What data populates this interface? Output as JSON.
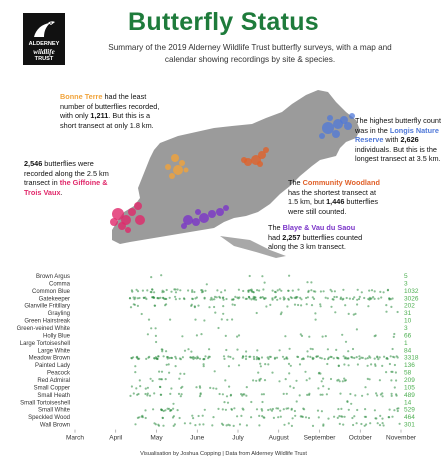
{
  "header": {
    "title": "Butterfly Status",
    "subtitle": "Summary of the 2019 Alderney Wildlife Trust butterfly surveys, with a map and calendar showing recordings by site & species.",
    "logo": {
      "line1": "ALDERNEY",
      "line2": "wildlife",
      "line3": "TRUST"
    }
  },
  "colors": {
    "title": "#1e7b3b",
    "map": "#9b9b9b",
    "bonne_terre": "#f1a33a",
    "longis": "#4f78d8",
    "community": "#e0612a",
    "gifoine": "#e0286a",
    "blaye": "#7a34c8",
    "dots": "#2a8a3e",
    "count": "#4caf50"
  },
  "annotations": {
    "bonne_terre": {
      "name": "Bonne Terre",
      "t1": " had the least number of butterflies recorded, with only ",
      "count": "1,211",
      "t2": ". But this is a short transect at only 1.8 km."
    },
    "longis": {
      "t0": "The highest butterfly count was in the ",
      "name": "Longis Nature Reserve",
      "t1": " with ",
      "count": "2,626",
      "t2": " individuals. But this is the longest transect at 3.5 km."
    },
    "gifoine": {
      "count": "2,546",
      "t1": " butterflies were recorded along the 2.5 km transect in ",
      "name": "the Giffoine & Trois Vaux",
      "t2": "."
    },
    "community": {
      "t0": "The ",
      "name": "Community Woodland",
      "t1": " has the shortest transect at 1.5 km, but ",
      "count": "1,446",
      "t2": " butterflies were still counted."
    },
    "blaye": {
      "t0": "The ",
      "name": "Blaye & Vau du Saou",
      "t1": " had ",
      "count": "2,257",
      "t2": " butterflies counted along the 3 km transect."
    }
  },
  "chart_data": {
    "type": "scatter",
    "xlabel": "",
    "ylabel": "",
    "months": [
      "March",
      "April",
      "May",
      "June",
      "July",
      "August",
      "September",
      "October",
      "November"
    ],
    "species": [
      {
        "name": "Brown Argus",
        "count": "5"
      },
      {
        "name": "Comma",
        "count": "3"
      },
      {
        "name": "Common Blue",
        "count": "1032"
      },
      {
        "name": "Gatekeeper",
        "count": "3026"
      },
      {
        "name": "Glanville Fritillary",
        "count": "202"
      },
      {
        "name": "Grayling",
        "count": "31"
      },
      {
        "name": "Green Hairstreak",
        "count": "10"
      },
      {
        "name": "Green-veined White",
        "count": "3"
      },
      {
        "name": "Holly Blue",
        "count": "66"
      },
      {
        "name": "Large Tortoiseshell",
        "count": "1"
      },
      {
        "name": "Large White",
        "count": "84"
      },
      {
        "name": "Meadow Brown",
        "count": "3318"
      },
      {
        "name": "Painted Lady",
        "count": "136"
      },
      {
        "name": "Peacock",
        "count": "58"
      },
      {
        "name": "Red Admiral",
        "count": "209"
      },
      {
        "name": "Small Copper",
        "count": "105"
      },
      {
        "name": "Small Heath",
        "count": "489"
      },
      {
        "name": "Small Tortoiseshell",
        "count": "14"
      },
      {
        "name": "Small White",
        "count": "529"
      },
      {
        "name": "Speckled Wood",
        "count": "464"
      },
      {
        "name": "Wall Brown",
        "count": "301"
      }
    ]
  },
  "footer": "Visualisation by Joshua Copping | Data from Alderney Wildlife Trust"
}
